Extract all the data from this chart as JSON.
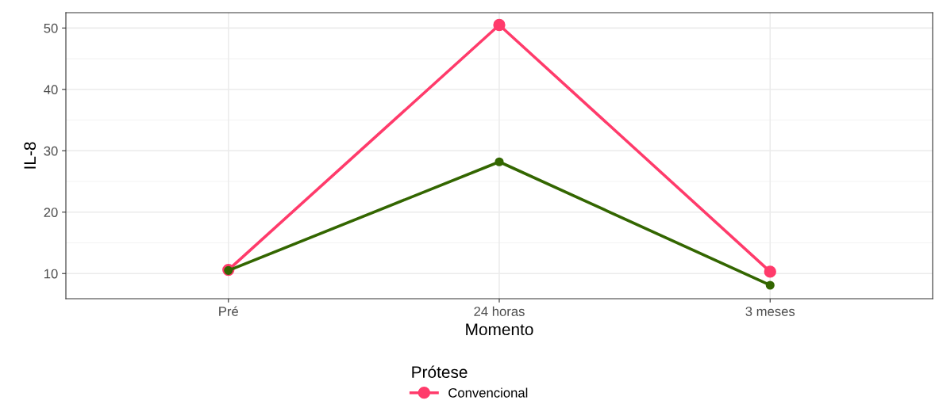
{
  "chart_data": {
    "type": "line",
    "xlabel": "Momento",
    "ylabel": "IL-8",
    "legend_title": "Prótese",
    "categories": [
      "Pré",
      "24 horas",
      "3 meses"
    ],
    "series": [
      {
        "name": "Convencional",
        "color": "#ff3b6b",
        "values": [
          10.6,
          50.5,
          10.3
        ]
      },
      {
        "color": "#336600",
        "values": [
          10.5,
          28.2,
          8.1
        ]
      }
    ],
    "ylim": [
      5.9,
      52.5
    ],
    "yticks": [
      10,
      20,
      30,
      40,
      50
    ],
    "grid": true,
    "legend": "bottom",
    "marker": "circle",
    "line_style": "solid"
  }
}
